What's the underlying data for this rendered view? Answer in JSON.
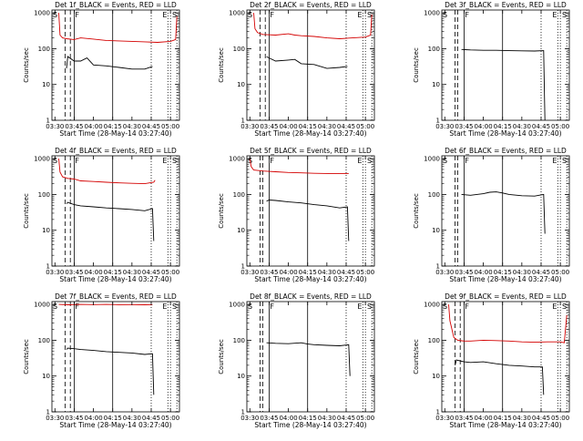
{
  "figure": {
    "panel_titles": [
      "Det 1f_BLACK = Events, RED = LLD",
      "Det 2f_BLACK = Events, RED = LLD",
      "Det 3f_BLACK = Events, RED = LLD",
      "Det 4f_BLACK = Events, RED = LLD",
      "Det 5f_BLACK = Events, RED = LLD",
      "Det 6f_BLACK = Events, RED = LLD",
      "Det 7f_BLACK = Events, RED = LLD",
      "Det 8f_BLACK = Events, RED = LLD",
      "Det 9f_BLACK = Events, RED = LLD"
    ],
    "xlabel": "Start Time (28-May-14 03:27:40)",
    "ylabel": "Counts/sec",
    "x_ticks": [
      "03:30",
      "03:45",
      "04:00",
      "04:15",
      "04:30",
      "04:45",
      "05:00"
    ],
    "y_ticks": [
      "1",
      "10",
      "100",
      "1000"
    ],
    "marker_labels": [
      "S",
      "F",
      "E",
      "S"
    ]
  },
  "colors": {
    "events": "#000000",
    "lld": "#d40000"
  },
  "chart_data": [
    {
      "type": "line",
      "detector": "1f",
      "xlim": [
        "03:27:40",
        "05:07:00"
      ],
      "ylim": [
        1,
        1200
      ],
      "y_scale": "log",
      "markers": {
        "dashed": [
          "03:38",
          "03:42"
        ],
        "solid": [
          "03:45",
          "04:15"
        ],
        "dotted": [
          "04:45",
          "04:58",
          "05:00",
          "05:05"
        ]
      },
      "series": [
        {
          "name": "Events",
          "x": [
            "03:39",
            "03:40",
            "03:45",
            "03:50",
            "03:55",
            "04:00",
            "04:10",
            "04:20",
            "04:30",
            "04:40",
            "04:46"
          ],
          "y": [
            28,
            60,
            45,
            45,
            55,
            35,
            33,
            30,
            27,
            27,
            32
          ]
        },
        {
          "name": "LLD",
          "x": [
            "03:33",
            "03:34",
            "03:36",
            "03:39",
            "03:45",
            "03:50",
            "04:00",
            "04:10",
            "04:20",
            "04:30",
            "04:40",
            "04:50",
            "05:00",
            "05:04",
            "05:05"
          ],
          "y": [
            1000,
            240,
            200,
            190,
            180,
            200,
            185,
            170,
            165,
            160,
            155,
            150,
            160,
            180,
            800
          ]
        }
      ]
    },
    {
      "type": "line",
      "detector": "2f",
      "xlim": [
        "03:27:40",
        "05:07:00"
      ],
      "ylim": [
        1,
        1200
      ],
      "y_scale": "log",
      "markers": {
        "dashed": [
          "03:38",
          "03:42"
        ],
        "solid": [
          "03:45",
          "04:15"
        ],
        "dotted": [
          "04:45",
          "04:58",
          "05:00",
          "05:05"
        ]
      },
      "series": [
        {
          "name": "Events",
          "x": [
            "03:43",
            "03:45",
            "03:50",
            "04:00",
            "04:05",
            "04:10",
            "04:20",
            "04:30",
            "04:40",
            "04:46"
          ],
          "y": [
            60,
            55,
            45,
            48,
            50,
            38,
            36,
            28,
            30,
            32
          ]
        },
        {
          "name": "LLD",
          "x": [
            "03:33",
            "03:34",
            "03:36",
            "03:40",
            "03:50",
            "04:00",
            "04:05",
            "04:10",
            "04:20",
            "04:30",
            "04:40",
            "04:50",
            "05:00",
            "05:04",
            "05:05"
          ],
          "y": [
            1000,
            360,
            280,
            250,
            240,
            260,
            240,
            230,
            220,
            200,
            190,
            200,
            210,
            240,
            900
          ]
        }
      ]
    },
    {
      "type": "line",
      "detector": "3f",
      "xlim": [
        "03:27:40",
        "05:07:00"
      ],
      "ylim": [
        1,
        1200
      ],
      "y_scale": "log",
      "markers": {
        "dashed": [
          "03:38",
          "03:40"
        ],
        "solid": [
          "03:45",
          "04:15"
        ],
        "dotted": [
          "04:45",
          "04:58",
          "05:00",
          "05:05"
        ]
      },
      "series": [
        {
          "name": "Events",
          "x": [
            "03:43",
            "03:50",
            "04:00",
            "04:10",
            "04:20",
            "04:30",
            "04:40",
            "04:47",
            "04:48"
          ],
          "y": [
            95,
            92,
            90,
            90,
            88,
            87,
            86,
            88,
            0
          ]
        }
      ]
    },
    {
      "type": "line",
      "detector": "4f",
      "xlim": [
        "03:27:40",
        "05:07:00"
      ],
      "ylim": [
        1,
        1200
      ],
      "y_scale": "log",
      "markers": {
        "dashed": [
          "03:38",
          "03:42"
        ],
        "solid": [
          "03:45",
          "04:15"
        ],
        "dotted": [
          "04:45",
          "04:58",
          "05:00",
          "05:05"
        ]
      },
      "series": [
        {
          "name": "Events",
          "x": [
            "03:39",
            "03:40",
            "03:45",
            "03:50",
            "04:00",
            "04:10",
            "04:20",
            "04:30",
            "04:40",
            "04:46",
            "04:47"
          ],
          "y": [
            55,
            60,
            52,
            48,
            45,
            42,
            40,
            38,
            35,
            40,
            5
          ]
        },
        {
          "name": "LLD",
          "x": [
            "03:33",
            "03:34",
            "03:36",
            "03:40",
            "03:45",
            "03:50",
            "04:00",
            "04:10",
            "04:20",
            "04:30",
            "04:40",
            "04:47",
            "04:48"
          ],
          "y": [
            1000,
            420,
            310,
            280,
            270,
            240,
            230,
            220,
            210,
            205,
            200,
            220,
            250
          ]
        }
      ]
    },
    {
      "type": "line",
      "detector": "5f",
      "xlim": [
        "03:27:40",
        "05:07:00"
      ],
      "ylim": [
        1,
        1200
      ],
      "y_scale": "log",
      "markers": {
        "dashed": [
          "03:38",
          "03:40"
        ],
        "solid": [
          "03:45",
          "04:15"
        ],
        "dotted": [
          "04:45",
          "04:58",
          "05:00",
          "05:05"
        ]
      },
      "series": [
        {
          "name": "Events",
          "x": [
            "03:43",
            "03:45",
            "03:50",
            "04:00",
            "04:10",
            "04:20",
            "04:30",
            "04:40",
            "04:46",
            "04:47"
          ],
          "y": [
            65,
            70,
            68,
            62,
            58,
            52,
            48,
            42,
            45,
            5
          ]
        },
        {
          "name": "LLD",
          "x": [
            "03:30",
            "03:31",
            "03:33",
            "03:40",
            "03:50",
            "04:00",
            "04:10",
            "04:20",
            "04:30",
            "04:40",
            "04:47"
          ],
          "y": [
            1000,
            600,
            480,
            450,
            430,
            410,
            400,
            390,
            385,
            380,
            380
          ]
        }
      ]
    },
    {
      "type": "line",
      "detector": "6f",
      "xlim": [
        "03:27:40",
        "05:07:00"
      ],
      "ylim": [
        1,
        1200
      ],
      "y_scale": "log",
      "markers": {
        "dashed": [
          "03:38",
          "03:40"
        ],
        "solid": [
          "03:45",
          "04:15"
        ],
        "dotted": [
          "04:45",
          "04:58",
          "05:00",
          "05:05"
        ]
      },
      "series": [
        {
          "name": "Events",
          "x": [
            "03:43",
            "03:50",
            "04:00",
            "04:05",
            "04:10",
            "04:15",
            "04:20",
            "04:30",
            "04:40",
            "04:47",
            "04:48"
          ],
          "y": [
            100,
            95,
            105,
            115,
            118,
            110,
            100,
            92,
            90,
            100,
            8
          ]
        }
      ]
    },
    {
      "type": "line",
      "detector": "7f",
      "xlim": [
        "03:27:40",
        "05:07:00"
      ],
      "ylim": [
        1,
        1200
      ],
      "y_scale": "log",
      "markers": {
        "dashed": [
          "03:38",
          "03:42"
        ],
        "solid": [
          "03:45",
          "04:15"
        ],
        "dotted": [
          "04:45",
          "04:58",
          "05:00",
          "05:05"
        ]
      },
      "series": [
        {
          "name": "Events",
          "x": [
            "03:39",
            "03:40",
            "03:45",
            "03:50",
            "04:00",
            "04:10",
            "04:20",
            "04:30",
            "04:40",
            "04:46",
            "04:47"
          ],
          "y": [
            55,
            60,
            58,
            55,
            52,
            48,
            46,
            44,
            40,
            42,
            3
          ]
        },
        {
          "name": "LLD",
          "x": [
            "03:33",
            "03:40",
            "03:50",
            "04:00",
            "04:10",
            "04:20",
            "04:30",
            "04:40",
            "04:46"
          ],
          "y": [
            1000,
            980,
            1000,
            990,
            1000,
            985,
            990,
            980,
            990
          ]
        }
      ]
    },
    {
      "type": "line",
      "detector": "8f",
      "xlim": [
        "03:27:40",
        "05:07:00"
      ],
      "ylim": [
        1,
        1200
      ],
      "y_scale": "log",
      "markers": {
        "dashed": [
          "03:38",
          "03:40"
        ],
        "solid": [
          "03:45",
          "04:15"
        ],
        "dotted": [
          "04:45",
          "04:58",
          "05:00",
          "05:05"
        ]
      },
      "series": [
        {
          "name": "Events",
          "x": [
            "03:43",
            "03:50",
            "04:00",
            "04:10",
            "04:15",
            "04:20",
            "04:30",
            "04:40",
            "04:47",
            "04:48"
          ],
          "y": [
            85,
            82,
            80,
            85,
            78,
            75,
            72,
            70,
            75,
            10
          ]
        }
      ]
    },
    {
      "type": "line",
      "detector": "9f",
      "xlim": [
        "03:27:40",
        "05:07:00"
      ],
      "ylim": [
        1,
        1200
      ],
      "y_scale": "log",
      "markers": {
        "dashed": [
          "03:38",
          "03:42"
        ],
        "solid": [
          "03:45",
          "04:15"
        ],
        "dotted": [
          "04:45",
          "04:58",
          "05:00",
          "05:05"
        ]
      },
      "series": [
        {
          "name": "Events",
          "x": [
            "03:38",
            "03:39",
            "03:45",
            "03:50",
            "04:00",
            "04:10",
            "04:20",
            "04:30",
            "04:40",
            "04:46",
            "04:47"
          ],
          "y": [
            20,
            28,
            25,
            24,
            25,
            22,
            20,
            19,
            18,
            18,
            3
          ]
        },
        {
          "name": "LLD",
          "x": [
            "03:33",
            "03:34",
            "03:37",
            "03:40",
            "03:45",
            "03:50",
            "04:00",
            "04:10",
            "04:20",
            "04:30",
            "04:40",
            "04:50",
            "05:00",
            "05:03",
            "05:05"
          ],
          "y": [
            1000,
            350,
            120,
            100,
            95,
            95,
            100,
            98,
            95,
            90,
            88,
            90,
            90,
            85,
            500
          ]
        }
      ]
    }
  ]
}
